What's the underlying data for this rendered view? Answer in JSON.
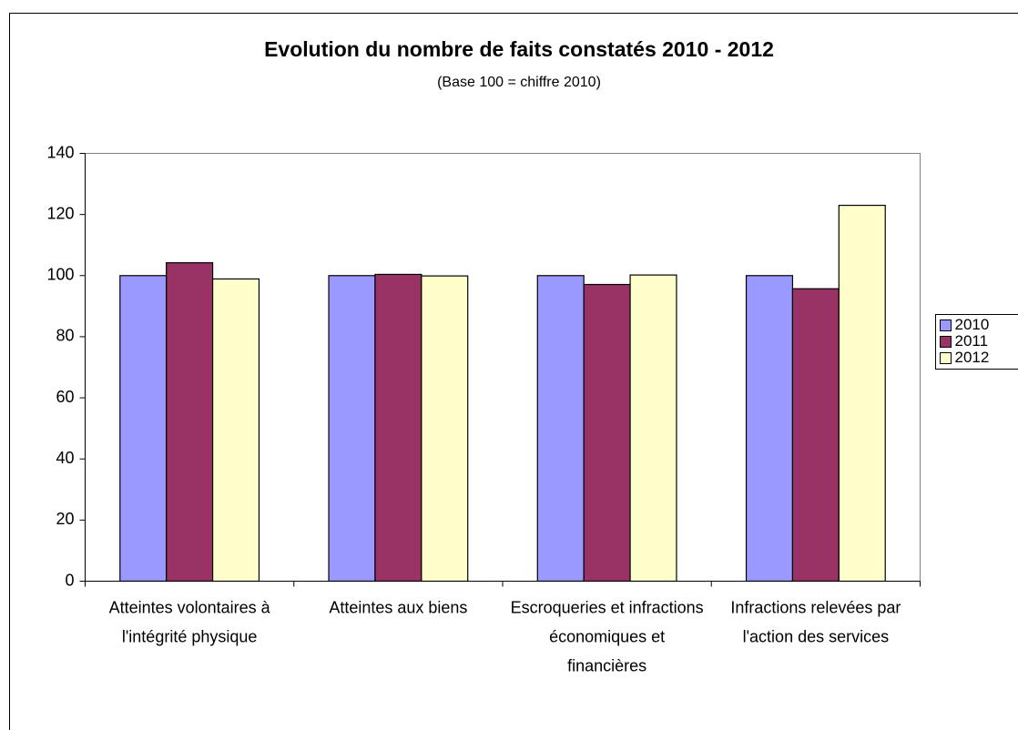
{
  "chart_data": {
    "type": "bar",
    "title": "Evolution du nombre de faits constatés 2010 - 2012",
    "subtitle": "(Base 100 = chiffre 2010)",
    "categories": [
      "Atteintes volontaires à l'intégrité physique",
      "Atteintes aux biens",
      "Escroqueries et infractions économiques et financières",
      "Infractions relevées par l'action des services"
    ],
    "series": [
      {
        "name": "2010",
        "color": "#9999ff",
        "values": [
          100,
          100,
          100,
          100
        ]
      },
      {
        "name": "2011",
        "color": "#993366",
        "values": [
          104.2,
          100.4,
          97.1,
          95.7
        ]
      },
      {
        "name": "2012",
        "color": "#ffffcc",
        "values": [
          98.9,
          99.9,
          100.2,
          123
        ]
      }
    ],
    "ylim": [
      0,
      140
    ],
    "yticks": [
      0,
      20,
      40,
      60,
      80,
      100,
      120,
      140
    ],
    "grid": false,
    "legend": "right"
  }
}
